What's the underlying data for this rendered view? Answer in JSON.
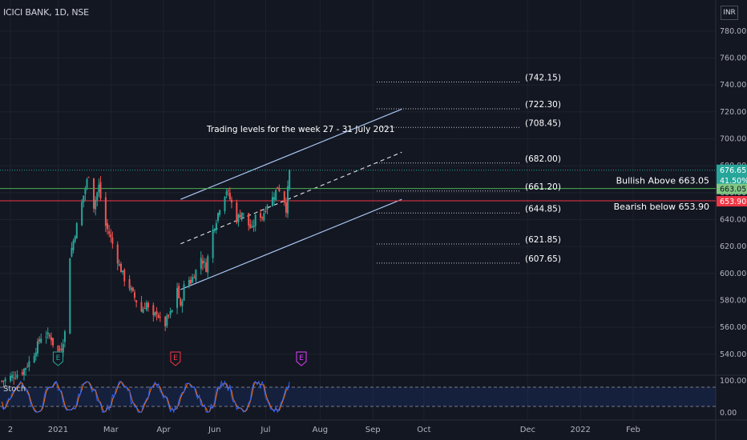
{
  "header": {
    "title": "ICICI BANK, 1D, NSE",
    "currency": "INR"
  },
  "theme": {
    "background": "#131722",
    "grid": "#1e222d",
    "up": "#26a69a",
    "down": "#ef5350",
    "channel": "#a8c4f0",
    "green_line": "#4caf50",
    "red_line": "#f23645",
    "stoch_k": "#2962ff",
    "stoch_d": "#ff6d00"
  },
  "chart_data": {
    "type": "candlestick",
    "symbol": "ICICI BANK",
    "interval": "1D",
    "exchange": "NSE",
    "ylim": [
      525,
      790
    ],
    "y_ticks": [
      540,
      560,
      580,
      600,
      620,
      640,
      660,
      680,
      700,
      720,
      740,
      760,
      780
    ],
    "y_tick_labels": [
      "540.00",
      "560.00",
      "580.00",
      "600.00",
      "620.00",
      "640.00",
      "660.00",
      "680.00",
      "700.00",
      "720.00",
      "740.00",
      "760.00",
      "780.00"
    ],
    "x_ticks": [
      {
        "d": 0,
        "label": "2"
      },
      {
        "d": 28,
        "label": "2021"
      },
      {
        "d": 59,
        "label": "Mar"
      },
      {
        "d": 90,
        "label": "Apr"
      },
      {
        "d": 120,
        "label": "Jun"
      },
      {
        "d": 150,
        "label": "Jul"
      },
      {
        "d": 182,
        "label": "Aug"
      },
      {
        "d": 213,
        "label": "Sep"
      },
      {
        "d": 243,
        "label": "Oct"
      },
      {
        "d": 304,
        "label": "Dec"
      },
      {
        "d": 335,
        "label": "2022"
      },
      {
        "d": 366,
        "label": "Feb"
      }
    ],
    "x_note": "x values are days from 2 Dec 2020 on a uniform time axis",
    "price_anchors": [
      [
        -5,
        520
      ],
      [
        7,
        527
      ],
      [
        13,
        538
      ],
      [
        19,
        556
      ],
      [
        24,
        552
      ],
      [
        27,
        540
      ],
      [
        30,
        545
      ],
      [
        32,
        556
      ],
      [
        33,
        602
      ],
      [
        38,
        630
      ],
      [
        43,
        658
      ],
      [
        46,
        674
      ],
      [
        49,
        650
      ],
      [
        52,
        665
      ],
      [
        55,
        638
      ],
      [
        58,
        630
      ],
      [
        61,
        618
      ],
      [
        64,
        606
      ],
      [
        67,
        596
      ],
      [
        70,
        590
      ],
      [
        73,
        582
      ],
      [
        77,
        572
      ],
      [
        80,
        578
      ],
      [
        83,
        564
      ],
      [
        86,
        572
      ],
      [
        90,
        558
      ],
      [
        92,
        566
      ],
      [
        95,
        572
      ],
      [
        98,
        590
      ],
      [
        100,
        574
      ],
      [
        103,
        598
      ],
      [
        106,
        594
      ],
      [
        109,
        602
      ],
      [
        112,
        612
      ],
      [
        115,
        604
      ],
      [
        118,
        628
      ],
      [
        121,
        640
      ],
      [
        124,
        654
      ],
      [
        127,
        662
      ],
      [
        130,
        652
      ],
      [
        133,
        640
      ],
      [
        136,
        646
      ],
      [
        139,
        638
      ],
      [
        142,
        632
      ],
      [
        145,
        646
      ],
      [
        148,
        642
      ],
      [
        151,
        652
      ],
      [
        154,
        656
      ],
      [
        157,
        664
      ],
      [
        160,
        660
      ],
      [
        162,
        648
      ],
      [
        164,
        676
      ]
    ],
    "events": [
      {
        "d": 28,
        "label": "E",
        "color": "#26a69a"
      },
      {
        "d": 97,
        "label": "E",
        "color": "#f23645"
      },
      {
        "d": 171,
        "label": "E",
        "color": "#e040fb"
      }
    ],
    "horizontal_lines": [
      {
        "value": 663.05,
        "color": "#4caf50",
        "label": "Bullish Above 663.05"
      },
      {
        "value": 653.9,
        "color": "#f23645",
        "label": "Bearish below 653.90"
      }
    ],
    "trading_levels": {
      "title": "Trading levels for the week 27 - 31 July 2021",
      "levels": [
        {
          "value": 742.15,
          "label": "(742.15)"
        },
        {
          "value": 722.3,
          "label": "(722.30)"
        },
        {
          "value": 708.45,
          "label": "(708.45)"
        },
        {
          "value": 682.0,
          "label": "(682.00)"
        },
        {
          "value": 661.2,
          "label": "(661.20)"
        },
        {
          "value": 644.85,
          "label": "(644.85)"
        },
        {
          "value": 621.85,
          "label": "(621.85)"
        },
        {
          "value": 607.65,
          "label": "(607.65)"
        }
      ]
    },
    "channel": {
      "upper": [
        [
          100,
          655
        ],
        [
          230,
          722
        ]
      ],
      "lower": [
        [
          100,
          588
        ],
        [
          230,
          655
        ]
      ],
      "mid": [
        [
          100,
          622
        ],
        [
          230,
          690
        ]
      ]
    },
    "price_badges": [
      {
        "value": 676.65,
        "label": "676.65",
        "sub": "41.50%",
        "color": "#26a69a"
      },
      {
        "value": 663.05,
        "label": "663.05",
        "color": "#81c784"
      },
      {
        "value": 653.9,
        "label": "653.90",
        "color": "#f23645"
      }
    ],
    "last_price": 676.65,
    "stochastic": {
      "name": "Stoch",
      "ylim": [
        0,
        100
      ],
      "ticks": [
        0,
        100
      ],
      "tick_labels": [
        "0.00",
        "100.00"
      ],
      "bands": [
        20,
        80
      ]
    }
  }
}
